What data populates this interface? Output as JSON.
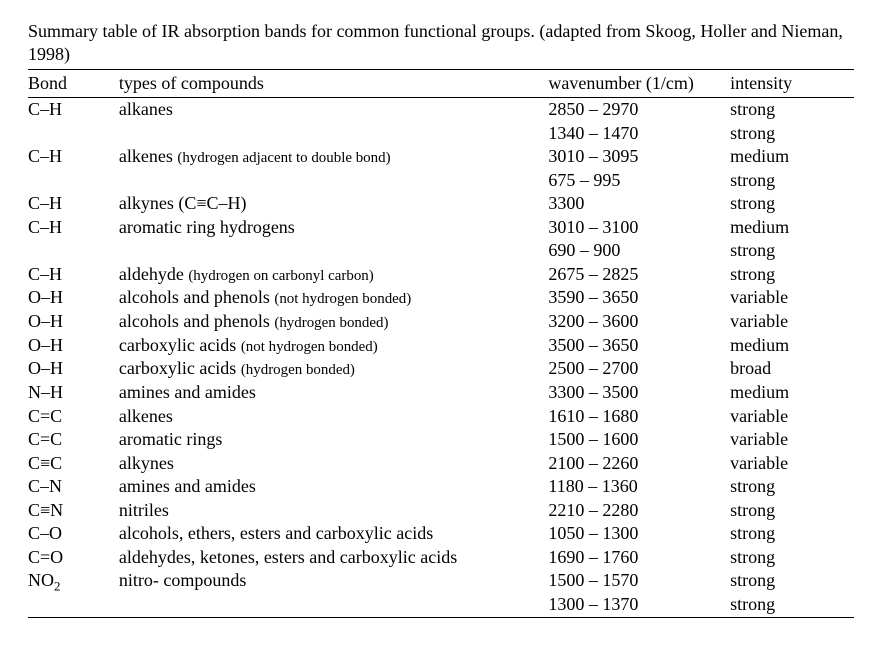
{
  "caption": {
    "text_main": "Summary table of IR absorption bands for common functional groups. (adapted from Skoog, Holler and Nieman, 1998)"
  },
  "table": {
    "columns": {
      "bond": "Bond",
      "compound": "types of compounds",
      "wavenumber": "wavenumber (1/cm)",
      "intensity": "intensity"
    },
    "column_widths_pct": [
      11,
      52,
      22,
      15
    ],
    "border_color": "#000000",
    "background_color": "#ffffff",
    "font_family": "Times New Roman",
    "base_fontsize_pt": 14,
    "paren_fontsize_ratio": 0.83,
    "rows": [
      {
        "bond": "C–H",
        "compound_main": "alkanes",
        "compound_paren": "",
        "wavenumber": "2850 – 2970",
        "intensity": "strong"
      },
      {
        "bond": "",
        "compound_main": "",
        "compound_paren": "",
        "wavenumber": "1340 – 1470",
        "intensity": "strong"
      },
      {
        "bond": "C–H",
        "compound_main": "alkenes ",
        "compound_paren": "(hydrogen adjacent to double bond)",
        "wavenumber": "3010 – 3095",
        "intensity": "medium"
      },
      {
        "bond": "",
        "compound_main": "",
        "compound_paren": "",
        "wavenumber": "675 – 995",
        "intensity": "strong"
      },
      {
        "bond": "C–H",
        "compound_main": "alkynes (C≡C–H)",
        "compound_paren": "",
        "wavenumber": "3300",
        "intensity": "strong"
      },
      {
        "bond": "C–H",
        "compound_main": "aromatic ring hydrogens",
        "compound_paren": "",
        "wavenumber": "3010 – 3100",
        "intensity": "medium"
      },
      {
        "bond": "",
        "compound_main": "",
        "compound_paren": "",
        "wavenumber": "690 – 900",
        "intensity": "strong"
      },
      {
        "bond": "C–H",
        "compound_main": "aldehyde ",
        "compound_paren": "(hydrogen on carbonyl carbon)",
        "wavenumber": "2675 – 2825",
        "intensity": "strong"
      },
      {
        "bond": "O–H",
        "compound_main": "alcohols and phenols ",
        "compound_paren": "(not hydrogen bonded)",
        "wavenumber": "3590 – 3650",
        "intensity": "variable"
      },
      {
        "bond": "O–H",
        "compound_main": "alcohols and phenols ",
        "compound_paren": "(hydrogen bonded)",
        "wavenumber": "3200 – 3600",
        "intensity": "variable"
      },
      {
        "bond": "O–H",
        "compound_main": "carboxylic acids ",
        "compound_paren": "(not hydrogen bonded)",
        "wavenumber": "3500 – 3650",
        "intensity": "medium"
      },
      {
        "bond": "O–H",
        "compound_main": "carboxylic acids ",
        "compound_paren": "(hydrogen bonded)",
        "wavenumber": "2500 – 2700",
        "intensity": "broad"
      },
      {
        "bond": "N–H",
        "compound_main": "amines and amides",
        "compound_paren": "",
        "wavenumber": "3300 – 3500",
        "intensity": "medium"
      },
      {
        "bond": "C=C",
        "compound_main": "alkenes",
        "compound_paren": "",
        "wavenumber": "1610 – 1680",
        "intensity": "variable"
      },
      {
        "bond": "C=C",
        "compound_main": "aromatic rings",
        "compound_paren": "",
        "wavenumber": "1500 – 1600",
        "intensity": "variable"
      },
      {
        "bond": "C≡C",
        "compound_main": "alkynes",
        "compound_paren": "",
        "wavenumber": "2100 – 2260",
        "intensity": "variable"
      },
      {
        "bond": "C–N",
        "compound_main": "amines and amides",
        "compound_paren": "",
        "wavenumber": "1180 – 1360",
        "intensity": "strong"
      },
      {
        "bond": "C≡N",
        "compound_main": "nitriles",
        "compound_paren": "",
        "wavenumber": "2210 – 2280",
        "intensity": "strong"
      },
      {
        "bond": "C–O",
        "compound_main": "alcohols, ethers, esters and carboxylic acids",
        "compound_paren": "",
        "wavenumber": "1050 – 1300",
        "intensity": "strong"
      },
      {
        "bond": "C=O",
        "compound_main": "aldehydes, ketones, esters and carboxylic acids",
        "compound_paren": "",
        "wavenumber": "1690 – 1760",
        "intensity": "strong"
      },
      {
        "bond": "NO2",
        "bond_has_sub": true,
        "compound_main": "nitro- compounds",
        "compound_paren": "",
        "wavenumber": "1500 – 1570",
        "intensity": "strong"
      },
      {
        "bond": "",
        "compound_main": "",
        "compound_paren": "",
        "wavenumber": "1300 – 1370",
        "intensity": "strong"
      }
    ]
  }
}
